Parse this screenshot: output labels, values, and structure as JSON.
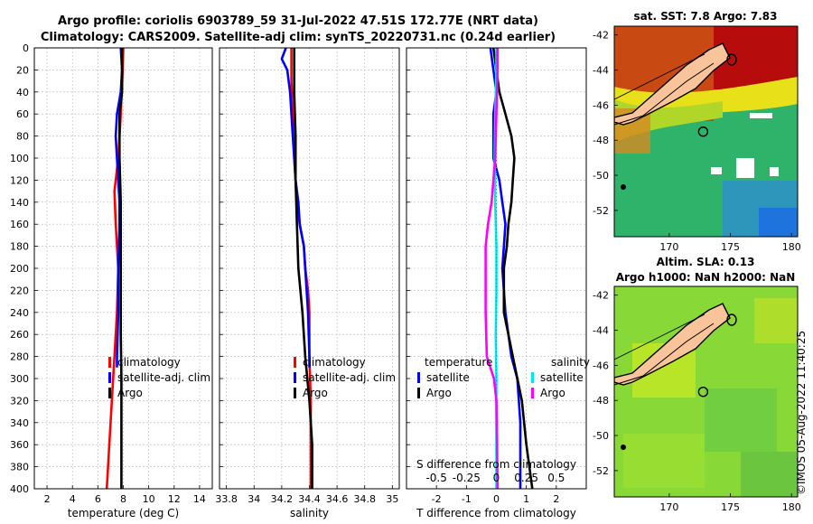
{
  "header": {
    "line1": "Argo profile: coriolis 6903789_59 31-Jul-2022 47.51S 172.77E (NRT data)",
    "line2": "Climatology: CARS2009. Satellite-adj clim: synTS_20220731.nc (0.24d earlier)"
  },
  "credit": "©IMOS 05-Aug-2022 11:40:25",
  "colors": {
    "argo": "#000000",
    "climatology": "#ff0000",
    "satellite": "#0000ff",
    "sat_salinity": "#00e5ee",
    "argo_salinity": "#ff00ff",
    "land": "#f9c49a"
  },
  "chart_data": [
    {
      "type": "line",
      "id": "temperature",
      "xlabel": "temperature (deg C)",
      "ylabel": "",
      "xlim": [
        1,
        15
      ],
      "ylim": [
        400,
        0
      ],
      "xticks": [
        2,
        4,
        6,
        8,
        10,
        12,
        14
      ],
      "yticks": [
        0,
        20,
        40,
        60,
        80,
        100,
        120,
        140,
        160,
        180,
        200,
        220,
        240,
        260,
        280,
        300,
        320,
        340,
        360,
        380,
        400
      ],
      "grid": true,
      "legend": [
        "climatology",
        "satellite-adj. clim",
        "Argo"
      ],
      "legend_position": "bottom-right",
      "series": [
        {
          "name": "climatology",
          "color": "#ff0000",
          "depth": [
            0,
            20,
            60,
            100,
            130,
            160,
            200,
            240,
            280,
            320,
            360,
            400
          ],
          "values": [
            8.0,
            7.95,
            7.8,
            7.6,
            7.3,
            7.4,
            7.6,
            7.5,
            7.3,
            7.1,
            6.9,
            6.7
          ]
        },
        {
          "name": "satellite-adj. clim",
          "color": "#0000ff",
          "depth": [
            0,
            20,
            40,
            60,
            80,
            100,
            120,
            140,
            160,
            180,
            200,
            240,
            280,
            290
          ],
          "values": [
            7.8,
            7.9,
            7.8,
            7.5,
            7.4,
            7.5,
            7.6,
            7.7,
            7.7,
            7.65,
            7.6,
            7.6,
            7.5,
            7.5
          ]
        },
        {
          "name": "Argo",
          "color": "#000000",
          "depth": [
            0,
            20,
            40,
            60,
            100,
            140,
            180,
            220,
            260,
            300,
            340,
            380,
            400
          ],
          "values": [
            7.9,
            7.9,
            7.9,
            7.7,
            7.7,
            7.8,
            7.8,
            7.8,
            7.8,
            7.85,
            7.85,
            7.85,
            7.85
          ]
        }
      ]
    },
    {
      "type": "line",
      "id": "salinity",
      "xlabel": "salinity",
      "ylabel": "",
      "xlim": [
        33.75,
        35.05
      ],
      "ylim": [
        400,
        0
      ],
      "xticks": [
        33.8,
        34,
        34.2,
        34.4,
        34.6,
        34.8,
        35
      ],
      "xtick_labels": [
        "33.8",
        "34",
        "34.2",
        "34.4",
        "34.6",
        "34.8",
        "35"
      ],
      "grid": true,
      "legend": [
        "climatology",
        "satellite-adj. clim",
        "Argo"
      ],
      "legend_position": "bottom-right",
      "series": [
        {
          "name": "climatology",
          "color": "#ff0000",
          "depth": [
            0,
            30,
            60,
            100,
            140,
            160,
            180,
            200,
            220,
            240,
            280,
            320,
            360,
            400
          ],
          "values": [
            34.27,
            34.27,
            34.28,
            34.29,
            34.31,
            34.33,
            34.36,
            34.37,
            34.39,
            34.4,
            34.4,
            34.41,
            34.41,
            34.41
          ]
        },
        {
          "name": "satellite-adj. clim",
          "color": "#0000ff",
          "depth": [
            0,
            10,
            20,
            40,
            60,
            80,
            100,
            120,
            140,
            160,
            180,
            200,
            240,
            280,
            290
          ],
          "values": [
            34.23,
            34.2,
            34.24,
            34.26,
            34.27,
            34.28,
            34.29,
            34.3,
            34.32,
            34.33,
            34.36,
            34.37,
            34.39,
            34.4,
            34.4
          ]
        },
        {
          "name": "Argo",
          "color": "#000000",
          "depth": [
            0,
            40,
            80,
            120,
            160,
            200,
            240,
            280,
            320,
            360,
            400
          ],
          "values": [
            34.29,
            34.29,
            34.3,
            34.3,
            34.31,
            34.32,
            34.35,
            34.37,
            34.4,
            34.42,
            34.42
          ]
        }
      ]
    },
    {
      "type": "line",
      "id": "difference",
      "xlabel": "T difference from climatology",
      "top_axis_label": "S difference from climatology",
      "xlim": [
        -3,
        3
      ],
      "ylim": [
        400,
        0
      ],
      "xticks": [
        -2,
        -1,
        0,
        1,
        2
      ],
      "top_ticks": [
        -0.5,
        -0.25,
        0,
        0.25,
        0.5
      ],
      "top_tick_labels": [
        "-0.5",
        "-0.25",
        "0",
        "0.25",
        "0.5"
      ],
      "s_scale": 4,
      "grid": true,
      "legend_titles": [
        "temperature",
        "salinity"
      ],
      "legend": [
        "satellite",
        "Argo",
        "satellite",
        "Argo"
      ],
      "series": [
        {
          "name": "temperature satellite",
          "color": "#0000ff",
          "depth": [
            0,
            20,
            40,
            60,
            80,
            100,
            120,
            140,
            160,
            200,
            240,
            260,
            280,
            300,
            340,
            380,
            400
          ],
          "values": [
            -0.2,
            -0.1,
            0.0,
            -0.1,
            -0.1,
            -0.1,
            0.1,
            0.2,
            0.3,
            0.2,
            0.3,
            0.4,
            0.5,
            0.7,
            0.8,
            0.8,
            0.8
          ]
        },
        {
          "name": "temperature Argo",
          "color": "#000000",
          "depth": [
            0,
            20,
            40,
            60,
            80,
            100,
            120,
            140,
            160,
            180,
            200,
            240,
            260,
            280,
            320,
            360,
            400
          ],
          "values": [
            -0.1,
            0.0,
            0.1,
            0.3,
            0.5,
            0.6,
            0.55,
            0.5,
            0.4,
            0.35,
            0.25,
            0.25,
            0.4,
            0.55,
            0.85,
            1.0,
            1.2
          ]
        },
        {
          "name": "salinity satellite",
          "color": "#00e5ee",
          "depth": [
            0,
            20,
            60,
            100,
            140,
            180,
            220,
            260,
            300,
            340,
            380,
            400
          ],
          "values": [
            0.0,
            0.0,
            -0.01,
            -0.015,
            -0.01,
            0.0,
            0.0,
            -0.005,
            0.0,
            0.0,
            0.0,
            0.0
          ]
        },
        {
          "name": "salinity Argo",
          "color": "#ff00ff",
          "depth": [
            0,
            20,
            60,
            100,
            140,
            160,
            180,
            200,
            240,
            280,
            300,
            320,
            360,
            400
          ],
          "values": [
            0.01,
            0.01,
            0.0,
            -0.01,
            -0.04,
            -0.07,
            -0.09,
            -0.09,
            -0.09,
            -0.08,
            -0.02,
            0.0,
            0.005,
            0.01
          ]
        }
      ]
    }
  ],
  "maps": [
    {
      "id": "sst_map",
      "title_lines": [
        "sat. SST: 7.8 Argo: 7.83"
      ],
      "xlim": [
        165.5,
        180.5
      ],
      "ylim": [
        -53.5,
        -41.5
      ],
      "xticks": [
        170,
        175,
        180
      ],
      "yticks": [
        -42,
        -44,
        -46,
        -48,
        -50,
        -52
      ],
      "argo_position": [
        172.77,
        -47.51
      ]
    },
    {
      "id": "sla_map",
      "title_lines": [
        "Altim. SLA: 0.13",
        "Argo h1000: NaN h2000: NaN"
      ],
      "xlim": [
        165.5,
        180.5
      ],
      "ylim": [
        -53.5,
        -41.5
      ],
      "xticks": [
        170,
        175,
        180
      ],
      "yticks": [
        -42,
        -44,
        -46,
        -48,
        -50,
        -52
      ],
      "argo_position": [
        172.77,
        -47.51
      ]
    }
  ]
}
